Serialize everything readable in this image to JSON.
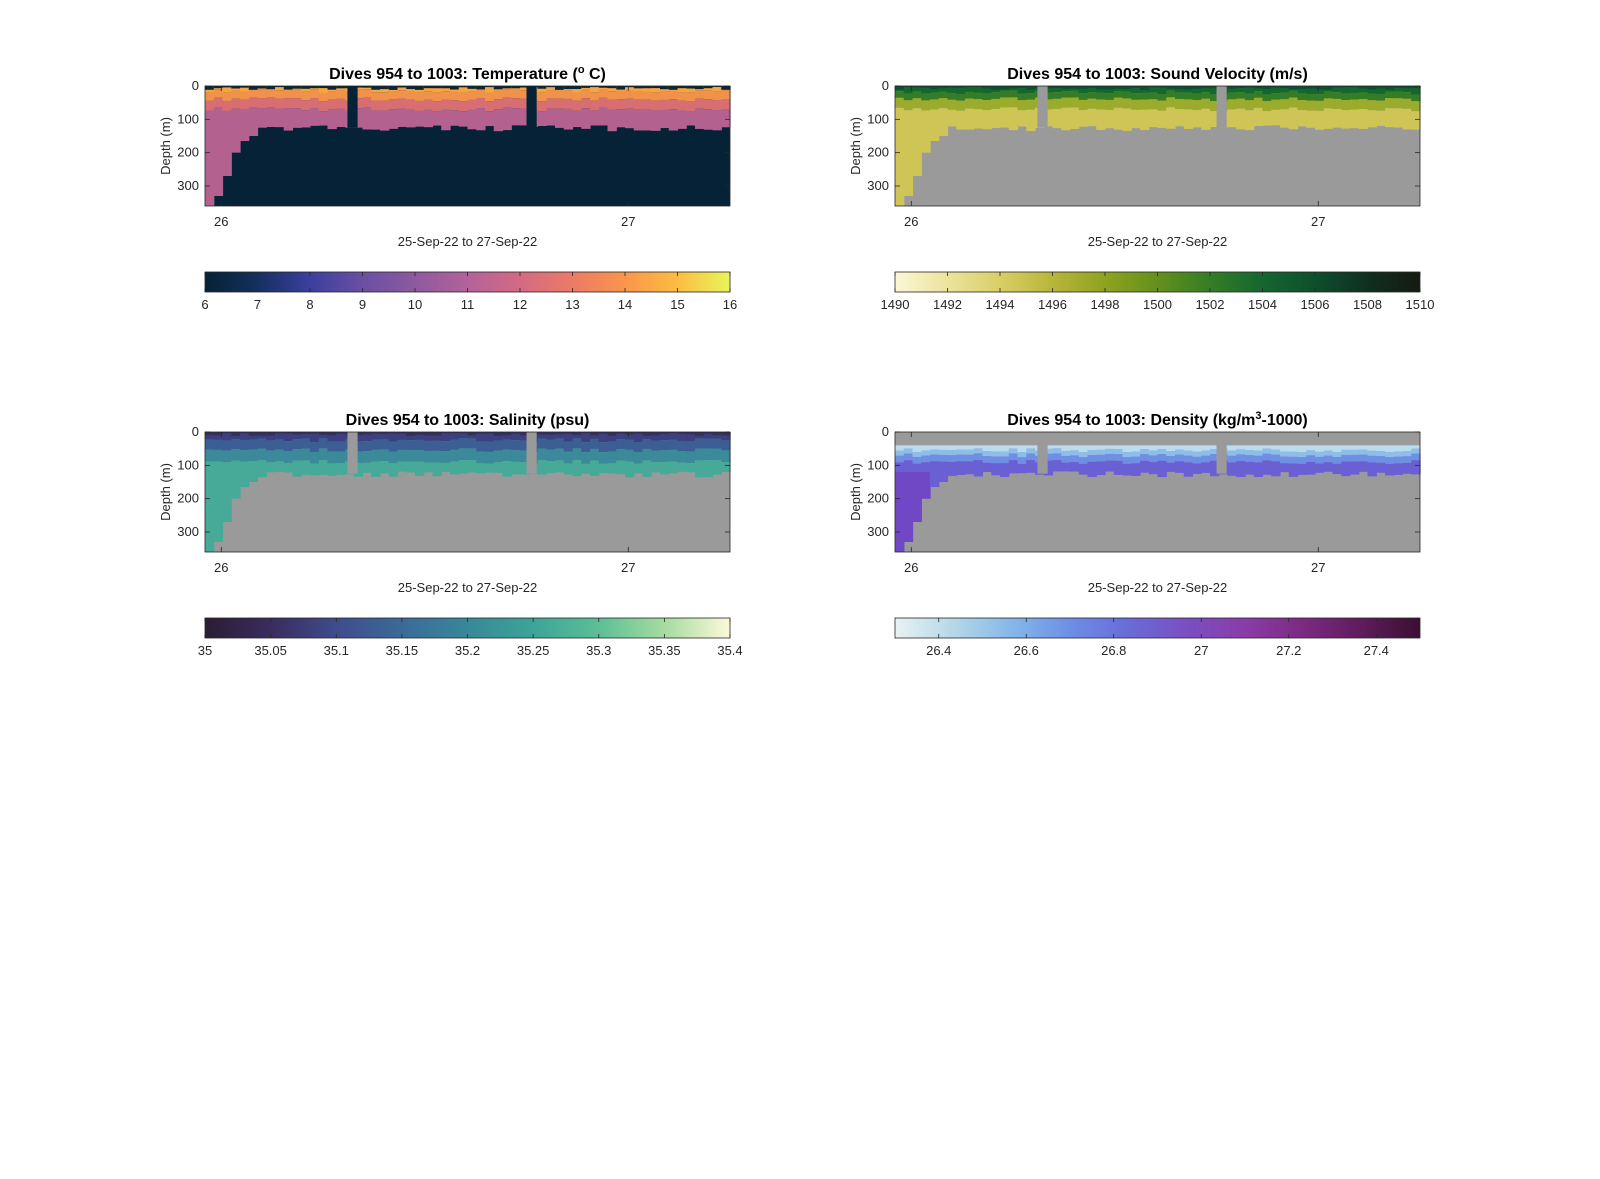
{
  "chart_data": [
    {
      "type": "heatmap",
      "title": "Dives 954 to 1003: Temperature (",
      "title_super": "o",
      "title_tail": " C)",
      "xlabel": "25-Sep-22 to 27-Sep-22",
      "ylabel": "Depth (m)",
      "x_ticks": [
        "26",
        "27"
      ],
      "x_tick_positions": [
        26.0,
        27.0
      ],
      "xlim": [
        25.96,
        27.25
      ],
      "y_ticks": [
        "0",
        "100",
        "200",
        "300"
      ],
      "y_tick_values": [
        0,
        100,
        200,
        300
      ],
      "ylim": [
        0,
        360
      ],
      "colorbar": {
        "ticks": [
          "6",
          "7",
          "8",
          "9",
          "10",
          "11",
          "12",
          "13",
          "14",
          "15",
          "16"
        ],
        "range": [
          6,
          16
        ],
        "colors": [
          "#062236",
          "#14305e",
          "#3b3f9e",
          "#6a4fa3",
          "#8e5a9f",
          "#b3629a",
          "#d36a85",
          "#ec7a66",
          "#f9964a",
          "#fbbd42",
          "#e8f55a"
        ]
      },
      "layers": [
        {
          "top": 0,
          "bottom": 15,
          "color": "#f7a53f"
        },
        {
          "top": 15,
          "bottom": 40,
          "color": "#f0924a"
        },
        {
          "top": 40,
          "bottom": 70,
          "color": "#d76f72"
        },
        {
          "top": 70,
          "bottom": 130,
          "color": "#b3628f"
        }
      ],
      "surface_color": "#0b2636",
      "deep_color": "#062236",
      "gap_color": "#062236"
    },
    {
      "type": "heatmap",
      "title": "Dives 954 to 1003: Sound Velocity (m/s)",
      "title_super": "",
      "title_tail": "",
      "xlabel": "25-Sep-22 to 27-Sep-22",
      "ylabel": "Depth (m)",
      "x_ticks": [
        "26",
        "27"
      ],
      "x_tick_positions": [
        26.0,
        27.0
      ],
      "xlim": [
        25.96,
        27.25
      ],
      "y_ticks": [
        "0",
        "100",
        "200",
        "300"
      ],
      "y_tick_values": [
        0,
        100,
        200,
        300
      ],
      "ylim": [
        0,
        360
      ],
      "colorbar": {
        "ticks": [
          "1490",
          "1492",
          "1494",
          "1496",
          "1498",
          "1500",
          "1502",
          "1504",
          "1506",
          "1508",
          "1510"
        ],
        "range": [
          1490,
          1510
        ],
        "colors": [
          "#fbf7d6",
          "#ece39c",
          "#d8cf66",
          "#b8b53b",
          "#8fa21f",
          "#64901c",
          "#357d25",
          "#156631",
          "#0e4f2c",
          "#102f20",
          "#151a12"
        ]
      },
      "layers": [
        {
          "top": 0,
          "bottom": 20,
          "color": "#156631"
        },
        {
          "top": 20,
          "bottom": 40,
          "color": "#357d25"
        },
        {
          "top": 40,
          "bottom": 70,
          "color": "#9bab2b"
        },
        {
          "top": 70,
          "bottom": 130,
          "color": "#cfc557"
        }
      ],
      "surface_color": "#0e4f2c",
      "deep_color": "#9a9a9a",
      "gap_color": "#9a9a9a"
    },
    {
      "type": "heatmap",
      "title": "Dives 954 to 1003: Salinity (psu)",
      "title_super": "",
      "title_tail": "",
      "xlabel": "25-Sep-22 to 27-Sep-22",
      "ylabel": "Depth (m)",
      "x_ticks": [
        "26",
        "27"
      ],
      "x_tick_positions": [
        26.0,
        27.0
      ],
      "xlim": [
        25.96,
        27.25
      ],
      "y_ticks": [
        "0",
        "100",
        "200",
        "300"
      ],
      "y_tick_values": [
        0,
        100,
        200,
        300
      ],
      "ylim": [
        0,
        360
      ],
      "colorbar": {
        "ticks": [
          "35",
          "35.05",
          "35.1",
          "35.15",
          "35.2",
          "35.25",
          "35.3",
          "35.35",
          "35.4"
        ],
        "range": [
          35,
          35.4
        ],
        "colors": [
          "#2a1d33",
          "#3a2c5e",
          "#3f4c8c",
          "#3b6a98",
          "#388899",
          "#3ca498",
          "#5cbf96",
          "#a6dba0",
          "#fcf9d8"
        ]
      },
      "layers": [
        {
          "top": 0,
          "bottom": 25,
          "color": "#3c3f80"
        },
        {
          "top": 25,
          "bottom": 55,
          "color": "#3b5f93"
        },
        {
          "top": 55,
          "bottom": 90,
          "color": "#3a8a9a"
        },
        {
          "top": 90,
          "bottom": 130,
          "color": "#47aa99"
        }
      ],
      "surface_color": "#34305e",
      "deep_color": "#9a9a9a",
      "gap_color": "#9a9a9a"
    },
    {
      "type": "heatmap",
      "title": "Dives 954 to 1003: Density (kg/m",
      "title_super": "3",
      "title_tail": "-1000)",
      "xlabel": "25-Sep-22 to 27-Sep-22",
      "ylabel": "Depth (m)",
      "x_ticks": [
        "26",
        "27"
      ],
      "x_tick_positions": [
        26.0,
        27.0
      ],
      "xlim": [
        25.96,
        27.25
      ],
      "y_ticks": [
        "0",
        "100",
        "200",
        "300"
      ],
      "y_tick_values": [
        0,
        100,
        200,
        300
      ],
      "ylim": [
        0,
        360
      ],
      "colorbar": {
        "ticks": [
          "26.4",
          "26.6",
          "26.8",
          "27",
          "27.2",
          "27.4"
        ],
        "tick_values": [
          26.4,
          26.6,
          26.8,
          27.0,
          27.2,
          27.4
        ],
        "range": [
          26.3,
          27.5
        ],
        "colors": [
          "#e8f2f3",
          "#b5d7e8",
          "#86b7e8",
          "#6c8fe6",
          "#6a6bd8",
          "#7a4fc2",
          "#8a3ca8",
          "#7c2a82",
          "#5e1c5c",
          "#3a0f33"
        ]
      },
      "layers": [
        {
          "top": 40,
          "bottom": 55,
          "color": "#b9dcee"
        },
        {
          "top": 55,
          "bottom": 70,
          "color": "#8fbdea"
        },
        {
          "top": 70,
          "bottom": 90,
          "color": "#6f8fe4"
        },
        {
          "top": 90,
          "bottom": 130,
          "color": "#6a5fd3"
        }
      ],
      "surface_color": "#9a9a9a",
      "deep_color": "#9a9a9a",
      "gap_color": "#9a9a9a",
      "left_profile_color": "#7047c4"
    }
  ]
}
